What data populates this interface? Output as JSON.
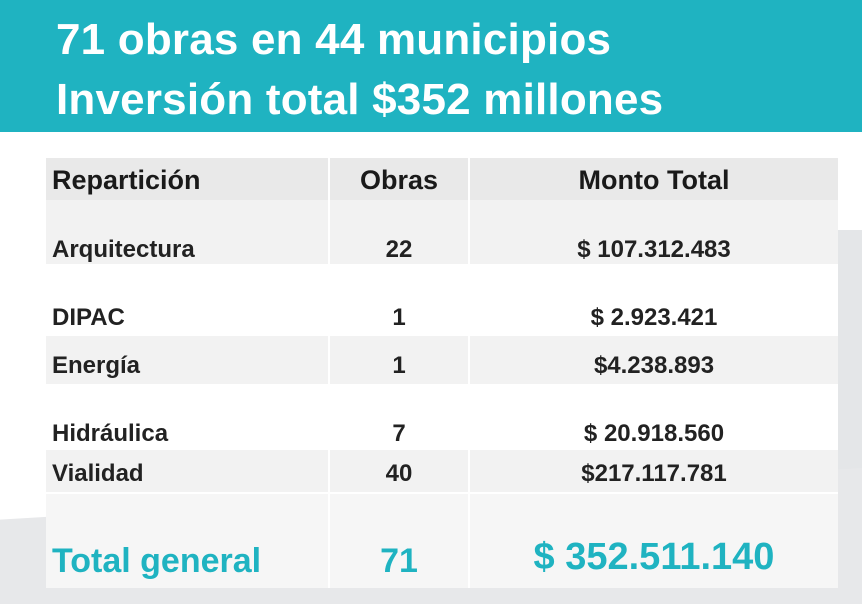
{
  "banner": {
    "line1": "71 obras en 44 municipios",
    "line2": "Inversión total $352 millones"
  },
  "table": {
    "headers": [
      "Repartición",
      "Obras",
      "Monto Total"
    ],
    "rows": [
      {
        "reparticion": "Arquitectura",
        "obras": "22",
        "monto": "$ 107.312.483"
      },
      {
        "reparticion": "DIPAC",
        "obras": "1",
        "monto": "$ 2.923.421"
      },
      {
        "reparticion": "Energía",
        "obras": "1",
        "monto": "$4.238.893"
      },
      {
        "reparticion": "Hidráulica",
        "obras": "7",
        "monto": "$ 20.918.560"
      },
      {
        "reparticion": "Vialidad",
        "obras": "40",
        "monto": "$217.117.781"
      }
    ],
    "total": {
      "label": "Total general",
      "obras": "71",
      "monto": "$ 352.511.140"
    }
  },
  "colors": {
    "accent": "#1fb3c1",
    "band": "#f2f2f2",
    "header": "#e9e9e9"
  }
}
